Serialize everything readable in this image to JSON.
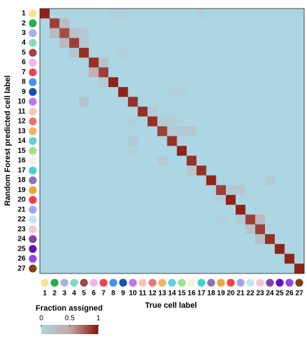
{
  "chart_data": {
    "type": "heatmap",
    "xlabel": "True cell label",
    "ylabel": "Random Forest predicted cell label",
    "colorbar_label": "Fraction assigned",
    "clim": [
      0,
      1
    ],
    "cticks": [
      0,
      0.5,
      1
    ],
    "colors": [
      "#acd6e3",
      "#c6a6a6",
      "#8a1408"
    ],
    "categories": [
      "1",
      "2",
      "3",
      "4",
      "5",
      "6",
      "7",
      "8",
      "9",
      "10",
      "11",
      "12",
      "13",
      "14",
      "15",
      "16",
      "17",
      "18",
      "19",
      "20",
      "21",
      "22",
      "23",
      "24",
      "25",
      "26",
      "27"
    ],
    "category_colors": [
      "#f6e48c",
      "#22b04b",
      "#a2b2e2",
      "#80dcc0",
      "#a04444",
      "#f2b2ea",
      "#f04252",
      "#4292f0",
      "#1252b2",
      "#c272f2",
      "#ffc2b2",
      "#f07272",
      "#f2b262",
      "#62d2e2",
      "#a2e282",
      "#f8f0e2",
      "#42d2d2",
      "#9272b2",
      "#f2a232",
      "#f04242",
      "#a2a2f2",
      "#c2e2f8",
      "#f8c2da",
      "#8242a2",
      "#6212c2",
      "#9242f2",
      "#804212"
    ],
    "z": [
      [
        0.95,
        0,
        0,
        0,
        0,
        0,
        0,
        0.03,
        0.05,
        0,
        0,
        0,
        0,
        0,
        0,
        0,
        0.05,
        0,
        0,
        0,
        0,
        0,
        0,
        0,
        0,
        0,
        0
      ],
      [
        0,
        0.85,
        0.25,
        0,
        0,
        0,
        0,
        0,
        0,
        0,
        0,
        0,
        0,
        0,
        0,
        0,
        0,
        0,
        0,
        0,
        0,
        0,
        0,
        0,
        0,
        0,
        0
      ],
      [
        0,
        0.3,
        0.8,
        0.2,
        0.1,
        0,
        0,
        0,
        0,
        0,
        0,
        0,
        0,
        0,
        0,
        0,
        0,
        0,
        0,
        0,
        0,
        0,
        0,
        0,
        0,
        0,
        0
      ],
      [
        0,
        0,
        0.3,
        0.85,
        0.15,
        0,
        0,
        0,
        0,
        0,
        0,
        0,
        0,
        0,
        0,
        0,
        0,
        0,
        0,
        0,
        0,
        0,
        0,
        0,
        0,
        0,
        0
      ],
      [
        0,
        0,
        0,
        0.2,
        0.9,
        0,
        0,
        0,
        0.05,
        0,
        0,
        0,
        0,
        0,
        0,
        0,
        0,
        0,
        0,
        0,
        0,
        0,
        0,
        0,
        0,
        0,
        0
      ],
      [
        0,
        0,
        0,
        0,
        0,
        0.9,
        0.2,
        0,
        0,
        0,
        0,
        0,
        0,
        0,
        0,
        0,
        0,
        0,
        0,
        0,
        0,
        0,
        0,
        0,
        0,
        0,
        0
      ],
      [
        0,
        0,
        0,
        0,
        0,
        0.4,
        0.85,
        0,
        0,
        0,
        0,
        0,
        0,
        0,
        0,
        0,
        0,
        0,
        0,
        0,
        0,
        0,
        0,
        0,
        0,
        0,
        0
      ],
      [
        0,
        0,
        0,
        0,
        0,
        0,
        0.1,
        0.95,
        0,
        0,
        0,
        0,
        0,
        0,
        0,
        0,
        0,
        0,
        0,
        0,
        0,
        0,
        0,
        0,
        0,
        0,
        0
      ],
      [
        0,
        0,
        0,
        0,
        0,
        0,
        0,
        0,
        0.95,
        0,
        0,
        0,
        0,
        0.05,
        0.05,
        0,
        0,
        0,
        0,
        0,
        0,
        0,
        0,
        0,
        0,
        0,
        0
      ],
      [
        0,
        0,
        0,
        0,
        0.2,
        0,
        0,
        0,
        0,
        0.9,
        0,
        0,
        0,
        0,
        0,
        0,
        0,
        0,
        0,
        0,
        0,
        0,
        0,
        0,
        0,
        0,
        0
      ],
      [
        0,
        0,
        0,
        0,
        0,
        0,
        0,
        0,
        0,
        0,
        0.9,
        0.1,
        0,
        0,
        0,
        0,
        0,
        0,
        0,
        0,
        0,
        0,
        0,
        0,
        0,
        0,
        0
      ],
      [
        0,
        0,
        0,
        0,
        0,
        0,
        0,
        0,
        0,
        0.05,
        0,
        0.9,
        0.1,
        0.1,
        0,
        0,
        0,
        0,
        0,
        0,
        0,
        0,
        0,
        0,
        0,
        0,
        0
      ],
      [
        0,
        0,
        0,
        0,
        0,
        0,
        0,
        0,
        0,
        0,
        0,
        0,
        0.85,
        0.1,
        0.15,
        0.15,
        0,
        0,
        0,
        0,
        0,
        0,
        0,
        0,
        0,
        0,
        0
      ],
      [
        0,
        0,
        0,
        0,
        0,
        0,
        0,
        0,
        0,
        0.15,
        0,
        0,
        0,
        0.9,
        0,
        0,
        0,
        0,
        0,
        0,
        0,
        0,
        0,
        0,
        0,
        0,
        0
      ],
      [
        0,
        0,
        0,
        0,
        0,
        0,
        0,
        0,
        0,
        0.05,
        0,
        0,
        0,
        0,
        0.95,
        0,
        0,
        0,
        0,
        0,
        0,
        0,
        0,
        0,
        0,
        0,
        0
      ],
      [
        0,
        0,
        0,
        0,
        0,
        0,
        0,
        0,
        0,
        0,
        0,
        0,
        0.1,
        0,
        0,
        0.9,
        0,
        0,
        0,
        0,
        0,
        0,
        0,
        0,
        0,
        0,
        0
      ],
      [
        0,
        0,
        0,
        0,
        0,
        0,
        0,
        0,
        0,
        0,
        0,
        0,
        0,
        0,
        0,
        0.15,
        0.9,
        0,
        0,
        0,
        0,
        0,
        0,
        0,
        0,
        0,
        0
      ],
      [
        0,
        0,
        0,
        0,
        0,
        0,
        0,
        0,
        0,
        0,
        0,
        0,
        0,
        0,
        0,
        0,
        0,
        0.95,
        0,
        0,
        0,
        0,
        0,
        0.1,
        0,
        0,
        0
      ],
      [
        0,
        0,
        0,
        0,
        0,
        0,
        0,
        0,
        0,
        0,
        0,
        0,
        0,
        0,
        0,
        0,
        0,
        0,
        0.85,
        0.15,
        0.15,
        0,
        0,
        0,
        0,
        0,
        0
      ],
      [
        0,
        0,
        0,
        0,
        0,
        0,
        0,
        0,
        0,
        0,
        0,
        0,
        0,
        0,
        0,
        0,
        0,
        0,
        0.05,
        0.95,
        0,
        0,
        0,
        0,
        0,
        0,
        0
      ],
      [
        0,
        0,
        0,
        0,
        0,
        0,
        0,
        0,
        0,
        0,
        0,
        0,
        0,
        0,
        0,
        0,
        0,
        0,
        0,
        0,
        0.95,
        0,
        0,
        0,
        0,
        0,
        0
      ],
      [
        0,
        0,
        0,
        0,
        0,
        0,
        0,
        0,
        0,
        0,
        0,
        0,
        0,
        0,
        0,
        0,
        0,
        0,
        0.05,
        0,
        0.1,
        0.85,
        0.3,
        0,
        0,
        0,
        0
      ],
      [
        0,
        0,
        0,
        0,
        0,
        0,
        0,
        0,
        0,
        0,
        0,
        0,
        0,
        0,
        0,
        0,
        0,
        0,
        0,
        0,
        0,
        0.2,
        0.85,
        0,
        0,
        0,
        0
      ],
      [
        0,
        0,
        0,
        0,
        0,
        0,
        0,
        0,
        0,
        0,
        0,
        0,
        0,
        0,
        0,
        0,
        0,
        0,
        0,
        0,
        0,
        0,
        0.25,
        0.9,
        0,
        0,
        0
      ],
      [
        0,
        0,
        0,
        0,
        0,
        0,
        0,
        0,
        0,
        0,
        0,
        0,
        0,
        0,
        0,
        0,
        0,
        0,
        0,
        0,
        0,
        0,
        0,
        0,
        0.95,
        0,
        0
      ],
      [
        0,
        0,
        0,
        0,
        0,
        0,
        0,
        0,
        0,
        0,
        0,
        0,
        0,
        0,
        0,
        0,
        0,
        0,
        0,
        0,
        0,
        0,
        0,
        0,
        0,
        0.95,
        0
      ],
      [
        0,
        0,
        0,
        0,
        0,
        0,
        0,
        0,
        0,
        0,
        0,
        0,
        0,
        0,
        0,
        0,
        0,
        0,
        0,
        0,
        0,
        0,
        0,
        0,
        0,
        0,
        0.95
      ]
    ]
  }
}
